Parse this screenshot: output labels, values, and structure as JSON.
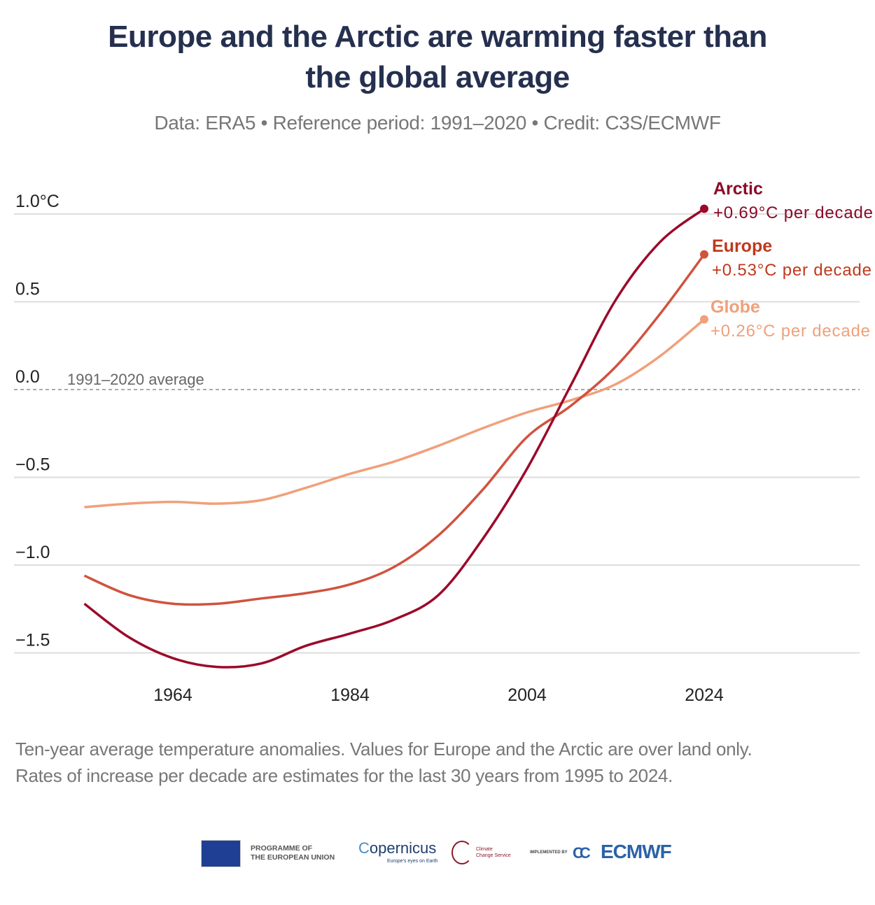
{
  "title_lines": [
    "Europe and the Arctic are warming faster than",
    "the global average"
  ],
  "subtitle": "Data: ERA5 • Reference period: 1991–2020 • Credit: C3S/ECMWF",
  "footnote_lines": [
    "Ten-year average temperature anomalies. Values for Europe and the Arctic are over land only.",
    "Rates of increase per decade are estimates for the last 30 years from 1995 to 2024."
  ],
  "logos": {
    "eu_line1": "PROGRAMME OF",
    "eu_line2": "THE EUROPEAN UNION",
    "copernicus": "opernicus",
    "copernicus_tagline": "Europe's eyes on Earth",
    "c3s_line1": "Climate",
    "c3s_line2": "Change Service",
    "implemented_by": "IMPLEMENTED BY",
    "ecmwf": "ECMWF"
  },
  "chart_data": {
    "type": "line",
    "title": "Europe and the Arctic are warming faster than the global average",
    "ylim": [
      -1.6,
      1.1
    ],
    "xlim": [
      1954,
      2033
    ],
    "x_ticks": [
      1964,
      1984,
      2004,
      2024
    ],
    "y_ticks": [
      {
        "value": 1.0,
        "label": "1.0°C"
      },
      {
        "value": 0.5,
        "label": "0.5"
      },
      {
        "value": 0.0,
        "label": "0.0"
      },
      {
        "value": -0.5,
        "label": "−0.5"
      },
      {
        "value": -1.0,
        "label": "−1.0"
      },
      {
        "value": -1.5,
        "label": "−1.5"
      }
    ],
    "grid": true,
    "reference_line": {
      "value": 0,
      "label": "1991–2020 average"
    },
    "x": [
      1954,
      1959,
      1964,
      1969,
      1974,
      1979,
      1984,
      1989,
      1994,
      1999,
      2004,
      2009,
      2014,
      2019,
      2024
    ],
    "series": [
      {
        "name": "Arctic",
        "rate": "+0.69°C per decade",
        "color": "#9b0a2b",
        "label_color": "#8b0a2a",
        "values": [
          -1.22,
          -1.41,
          -1.53,
          -1.58,
          -1.56,
          -1.46,
          -1.39,
          -1.31,
          -1.17,
          -0.85,
          -0.45,
          0.03,
          0.51,
          0.84,
          1.03
        ]
      },
      {
        "name": "Europe",
        "rate": "+0.53°C per decade",
        "color": "#d0533f",
        "label_color": "#c0391d",
        "values": [
          -1.06,
          -1.17,
          -1.22,
          -1.22,
          -1.19,
          -1.16,
          -1.11,
          -1.01,
          -0.83,
          -0.57,
          -0.27,
          -0.09,
          0.13,
          0.43,
          0.77
        ]
      },
      {
        "name": "Globe",
        "rate": "+0.26°C per decade",
        "color": "#f0a07a",
        "label_color": "#f0a07a",
        "values": [
          -0.67,
          -0.65,
          -0.64,
          -0.65,
          -0.63,
          -0.56,
          -0.48,
          -0.41,
          -0.32,
          -0.22,
          -0.13,
          -0.06,
          0.03,
          0.19,
          0.4
        ]
      }
    ]
  }
}
